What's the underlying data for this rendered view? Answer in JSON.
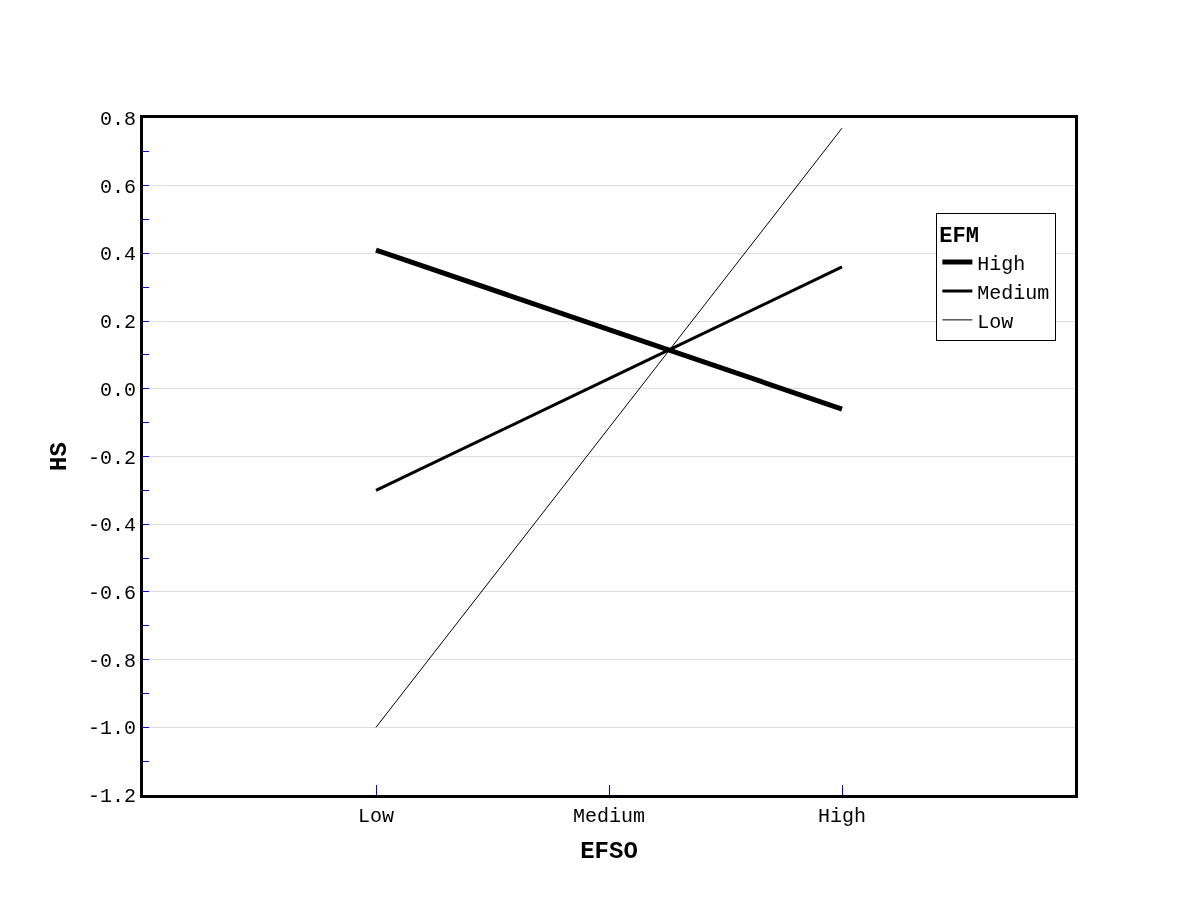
{
  "chart_data": {
    "type": "line",
    "xlabel": "EFSO",
    "ylabel": "HS",
    "legend_title": "EFM",
    "categories": [
      "Low",
      "Medium",
      "High"
    ],
    "series": [
      {
        "name": "High",
        "color": "#000000",
        "values": [
          0.41,
          0.175,
          -0.06
        ]
      },
      {
        "name": "Medium",
        "color": "#000000",
        "values": [
          -0.3,
          0.03,
          0.36
        ]
      },
      {
        "name": "Low",
        "color": "#000000",
        "values": [
          -1.0,
          -0.115,
          0.77
        ]
      }
    ],
    "ylim": [
      -1.2,
      0.8
    ],
    "yticks": [
      {
        "value": -1.2,
        "label": "-1.2"
      },
      {
        "value": -1.0,
        "label": "-1.0"
      },
      -0.8,
      -0.6,
      -0.4,
      -0.2,
      {
        "value": 0,
        "label": "0.0"
      },
      0.2,
      0.4,
      0.6,
      0.8
    ],
    "grid": "y",
    "legend": "top right",
    "marker": "none",
    "line_style": "solid"
  }
}
